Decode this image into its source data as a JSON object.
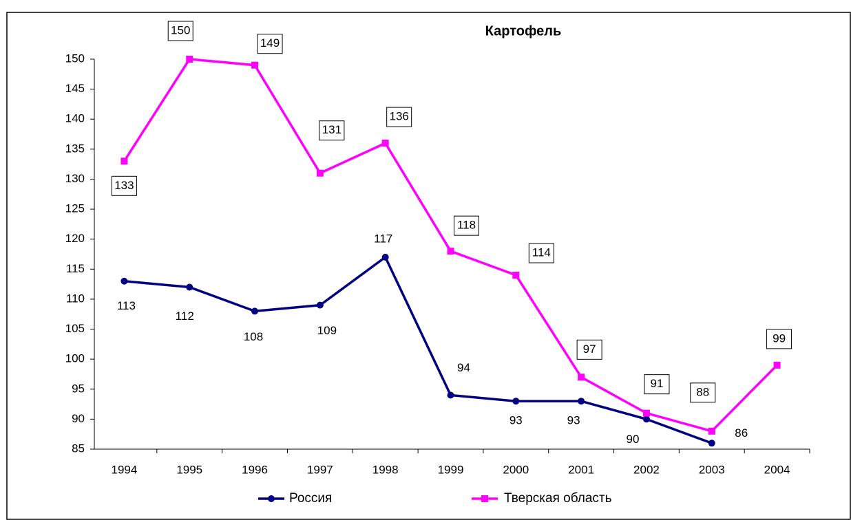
{
  "chart_data": {
    "type": "line",
    "title": "Картофель",
    "categories": [
      "1994",
      "1995",
      "1996",
      "1997",
      "1998",
      "1999",
      "2000",
      "2001",
      "2002",
      "2003",
      "2004"
    ],
    "series": [
      {
        "name": "Россия",
        "color": "#000080",
        "values": [
          113,
          112,
          108,
          109,
          117,
          94,
          93,
          93,
          90,
          86,
          null
        ]
      },
      {
        "name": "Тверская область",
        "color": "#ff00ff",
        "values": [
          133,
          150,
          149,
          131,
          136,
          118,
          114,
          97,
          91,
          88,
          99
        ]
      }
    ],
    "ylim": [
      85,
      150
    ],
    "yticks": [
      85,
      90,
      95,
      100,
      105,
      110,
      115,
      120,
      125,
      130,
      135,
      140,
      145,
      150
    ],
    "grid": false,
    "legend": "bottom"
  }
}
